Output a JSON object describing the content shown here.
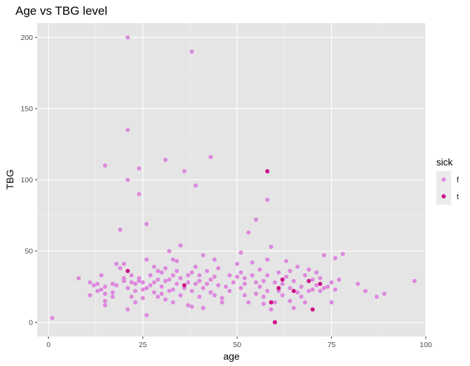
{
  "chart_data": {
    "type": "scatter",
    "title": "Age vs TBG level",
    "xlabel": "age",
    "ylabel": "TBG",
    "xlim": [
      -3,
      100
    ],
    "ylim": [
      -10,
      210
    ],
    "x_ticks": [
      0,
      25,
      50,
      75,
      100
    ],
    "y_ticks": [
      0,
      50,
      100,
      150,
      200
    ],
    "grid": true,
    "background": "#e5e5e5",
    "legend": {
      "title": "sick",
      "position": "right",
      "entries": [
        {
          "label": "f",
          "color": "#dd88dd"
        },
        {
          "label": "t",
          "color": "#cc0f86"
        }
      ]
    },
    "series": [
      {
        "name": "f",
        "color": "#dd88dd",
        "points": [
          [
            1,
            3
          ],
          [
            8,
            31
          ],
          [
            11,
            19
          ],
          [
            11,
            28
          ],
          [
            12,
            26
          ],
          [
            13,
            22
          ],
          [
            13,
            27
          ],
          [
            14,
            23
          ],
          [
            14,
            33
          ],
          [
            15,
            15
          ],
          [
            15,
            12
          ],
          [
            15,
            20
          ],
          [
            15,
            110
          ],
          [
            15,
            25
          ],
          [
            17,
            18
          ],
          [
            17,
            21
          ],
          [
            17,
            27
          ],
          [
            18,
            41
          ],
          [
            18,
            26
          ],
          [
            19,
            38
          ],
          [
            19,
            65
          ],
          [
            20,
            41
          ],
          [
            20,
            31
          ],
          [
            20,
            29
          ],
          [
            21,
            200
          ],
          [
            21,
            135
          ],
          [
            21,
            100
          ],
          [
            21,
            24
          ],
          [
            21,
            9
          ],
          [
            22,
            18
          ],
          [
            22,
            28
          ],
          [
            22,
            33
          ],
          [
            23,
            27
          ],
          [
            23,
            14
          ],
          [
            23,
            22
          ],
          [
            24,
            108
          ],
          [
            24,
            90
          ],
          [
            24,
            29
          ],
          [
            24,
            31
          ],
          [
            25,
            17
          ],
          [
            25,
            23
          ],
          [
            25,
            28
          ],
          [
            26,
            69
          ],
          [
            26,
            5
          ],
          [
            26,
            44
          ],
          [
            26,
            24
          ],
          [
            27,
            26
          ],
          [
            27,
            33
          ],
          [
            28,
            28
          ],
          [
            28,
            39
          ],
          [
            28,
            21
          ],
          [
            29,
            36
          ],
          [
            29,
            30
          ],
          [
            29,
            18
          ],
          [
            30,
            20
          ],
          [
            30,
            25
          ],
          [
            30,
            35
          ],
          [
            31,
            114
          ],
          [
            31,
            16
          ],
          [
            31,
            29
          ],
          [
            31,
            38
          ],
          [
            32,
            50
          ],
          [
            32,
            22
          ],
          [
            32,
            30
          ],
          [
            33,
            14
          ],
          [
            33,
            23
          ],
          [
            33,
            33
          ],
          [
            33,
            44
          ],
          [
            34,
            43
          ],
          [
            34,
            27
          ],
          [
            34,
            36
          ],
          [
            35,
            54
          ],
          [
            35,
            19
          ],
          [
            35,
            31
          ],
          [
            36,
            106
          ],
          [
            36,
            24
          ],
          [
            37,
            12
          ],
          [
            37,
            33
          ],
          [
            37,
            28
          ],
          [
            38,
            190
          ],
          [
            38,
            11
          ],
          [
            38,
            22
          ],
          [
            38,
            35
          ],
          [
            39,
            96
          ],
          [
            39,
            27
          ],
          [
            39,
            39
          ],
          [
            40,
            18
          ],
          [
            40,
            29
          ],
          [
            40,
            33
          ],
          [
            41,
            47
          ],
          [
            41,
            10
          ],
          [
            41,
            24
          ],
          [
            42,
            27
          ],
          [
            42,
            36
          ],
          [
            43,
            116
          ],
          [
            43,
            30
          ],
          [
            43,
            21
          ],
          [
            44,
            44
          ],
          [
            44,
            19
          ],
          [
            44,
            32
          ],
          [
            45,
            38
          ],
          [
            45,
            26
          ],
          [
            46,
            17
          ],
          [
            46,
            14
          ],
          [
            47,
            25
          ],
          [
            48,
            33
          ],
          [
            48,
            22
          ],
          [
            49,
            28
          ],
          [
            50,
            41
          ],
          [
            50,
            32
          ],
          [
            51,
            35
          ],
          [
            51,
            49
          ],
          [
            51,
            24
          ],
          [
            52,
            31
          ],
          [
            52,
            27
          ],
          [
            52,
            19
          ],
          [
            53,
            63
          ],
          [
            53,
            14
          ],
          [
            54,
            42
          ],
          [
            54,
            33
          ],
          [
            55,
            72
          ],
          [
            55,
            28
          ],
          [
            55,
            20
          ],
          [
            56,
            37
          ],
          [
            56,
            25
          ],
          [
            57,
            29
          ],
          [
            57,
            13
          ],
          [
            57,
            18
          ],
          [
            58,
            86
          ],
          [
            58,
            44
          ],
          [
            58,
            22
          ],
          [
            58,
            33
          ],
          [
            59,
            53
          ],
          [
            59,
            9
          ],
          [
            60,
            28
          ],
          [
            60,
            14
          ],
          [
            60,
            0
          ],
          [
            61,
            35
          ],
          [
            61,
            22
          ],
          [
            62,
            19
          ],
          [
            62,
            27
          ],
          [
            63,
            32
          ],
          [
            63,
            43
          ],
          [
            64,
            24
          ],
          [
            64,
            15
          ],
          [
            64,
            36
          ],
          [
            65,
            29
          ],
          [
            65,
            10
          ],
          [
            66,
            21
          ],
          [
            66,
            39
          ],
          [
            67,
            25
          ],
          [
            67,
            18
          ],
          [
            68,
            33
          ],
          [
            68,
            14
          ],
          [
            69,
            22
          ],
          [
            69,
            37
          ],
          [
            70,
            23
          ],
          [
            70,
            30
          ],
          [
            71,
            26
          ],
          [
            71,
            35
          ],
          [
            72,
            22
          ],
          [
            72,
            31
          ],
          [
            73,
            47
          ],
          [
            73,
            24
          ],
          [
            74,
            25
          ],
          [
            75,
            14
          ],
          [
            75,
            28
          ],
          [
            76,
            45
          ],
          [
            76,
            23
          ],
          [
            77,
            30
          ],
          [
            78,
            48
          ],
          [
            82,
            27
          ],
          [
            84,
            22
          ],
          [
            87,
            18
          ],
          [
            89,
            20
          ],
          [
            97,
            29
          ]
        ]
      },
      {
        "name": "t",
        "color": "#cc0f86",
        "points": [
          [
            21,
            36
          ],
          [
            36,
            26
          ],
          [
            58,
            106
          ],
          [
            59,
            14
          ],
          [
            60,
            0
          ],
          [
            61,
            24
          ],
          [
            62,
            30
          ],
          [
            65,
            22
          ],
          [
            69,
            29
          ],
          [
            70,
            9
          ],
          [
            72,
            27
          ]
        ]
      }
    ]
  }
}
